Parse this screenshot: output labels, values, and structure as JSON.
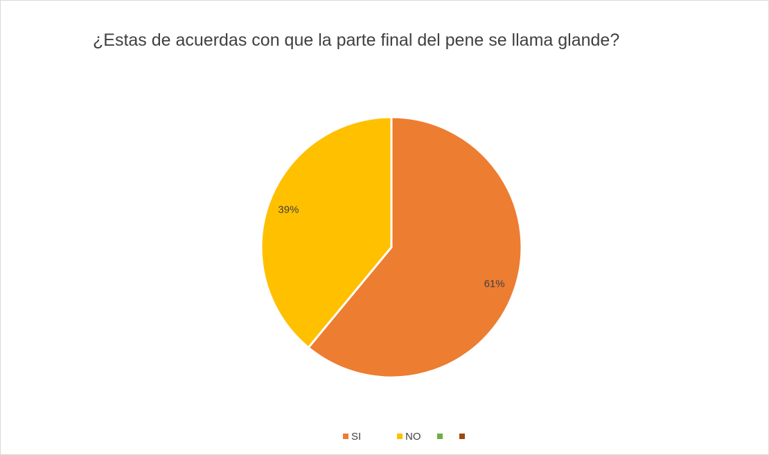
{
  "chart_data": {
    "type": "pie",
    "title": "¿Estas de acuerdas con que la parte final del pene se llama glande?",
    "categories": [
      "SI",
      "NO",
      null,
      null
    ],
    "values": [
      61,
      39,
      0,
      0
    ],
    "value_labels": [
      "61%",
      "39%",
      null,
      null
    ],
    "colors": [
      "#ed7d31",
      "#ffc000",
      "#70ad47",
      "#9e480e"
    ],
    "legend": "bottom"
  }
}
